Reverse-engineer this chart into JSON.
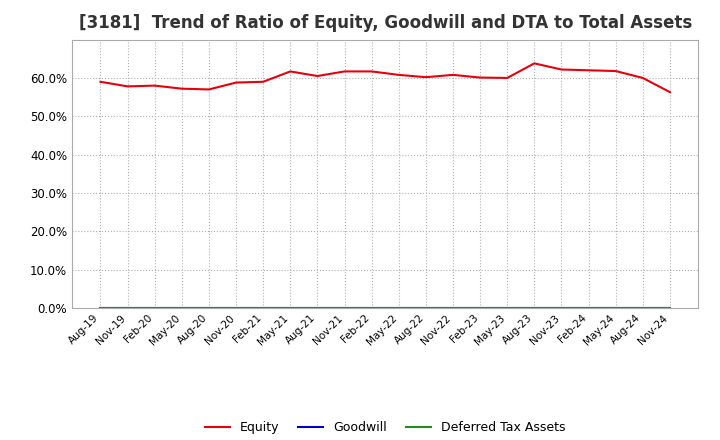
{
  "title": "[3181]  Trend of Ratio of Equity, Goodwill and DTA to Total Assets",
  "x_labels": [
    "Aug-19",
    "Nov-19",
    "Feb-20",
    "May-20",
    "Aug-20",
    "Nov-20",
    "Feb-21",
    "May-21",
    "Aug-21",
    "Nov-21",
    "Feb-22",
    "May-22",
    "Aug-22",
    "Nov-22",
    "Feb-23",
    "May-23",
    "Aug-23",
    "Nov-23",
    "Feb-24",
    "May-24",
    "Aug-24",
    "Nov-24"
  ],
  "equity_values": [
    0.59,
    0.578,
    0.58,
    0.572,
    0.57,
    0.588,
    0.59,
    0.617,
    0.605,
    0.617,
    0.617,
    0.608,
    0.602,
    0.608,
    0.601,
    0.6,
    0.638,
    0.622,
    0.62,
    0.618,
    0.6,
    0.563
  ],
  "goodwill_values": [
    0.0,
    0.0,
    0.0,
    0.0,
    0.0,
    0.0,
    0.0,
    0.0,
    0.0,
    0.0,
    0.0,
    0.0,
    0.0,
    0.0,
    0.0,
    0.0,
    0.0,
    0.0,
    0.0,
    0.0,
    0.0,
    0.0
  ],
  "dta_values": [
    0.0,
    0.0,
    0.0,
    0.0,
    0.0,
    0.0,
    0.0,
    0.0,
    0.0,
    0.0,
    0.0,
    0.0,
    0.0,
    0.0,
    0.0,
    0.0,
    0.0,
    0.0,
    0.0,
    0.0,
    0.0,
    0.0
  ],
  "equity_color": "#e8000d",
  "goodwill_color": "#0000cd",
  "dta_color": "#228b22",
  "ylim": [
    0.0,
    0.7
  ],
  "yticks": [
    0.0,
    0.1,
    0.2,
    0.3,
    0.4,
    0.5,
    0.6
  ],
  "background_color": "#ffffff",
  "plot_bg_color": "#ffffff",
  "grid_color": "#b0b0b0",
  "title_fontsize": 12,
  "legend_labels": [
    "Equity",
    "Goodwill",
    "Deferred Tax Assets"
  ]
}
